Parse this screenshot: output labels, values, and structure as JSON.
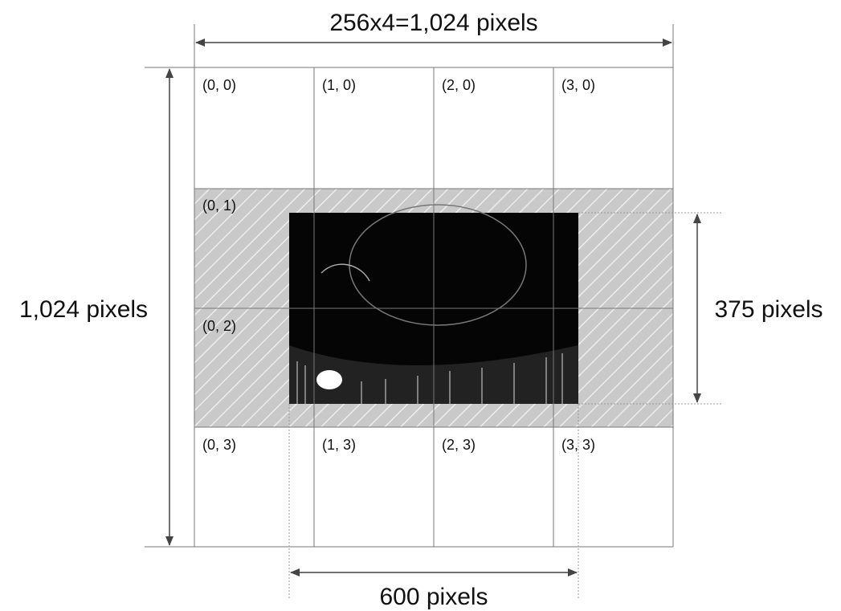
{
  "dimensions": {
    "top": "256x4=1,024 pixels",
    "left": "1,024 pixels",
    "right": "375 pixels",
    "bottom": "600 pixels"
  },
  "cells": [
    "(0, 0)",
    "(1, 0)",
    "(2, 0)",
    "(3, 0)",
    "(0, 1)",
    "(0, 2)",
    "(0, 3)",
    "(1, 3)",
    "(2, 3)",
    "(3, 3)"
  ]
}
